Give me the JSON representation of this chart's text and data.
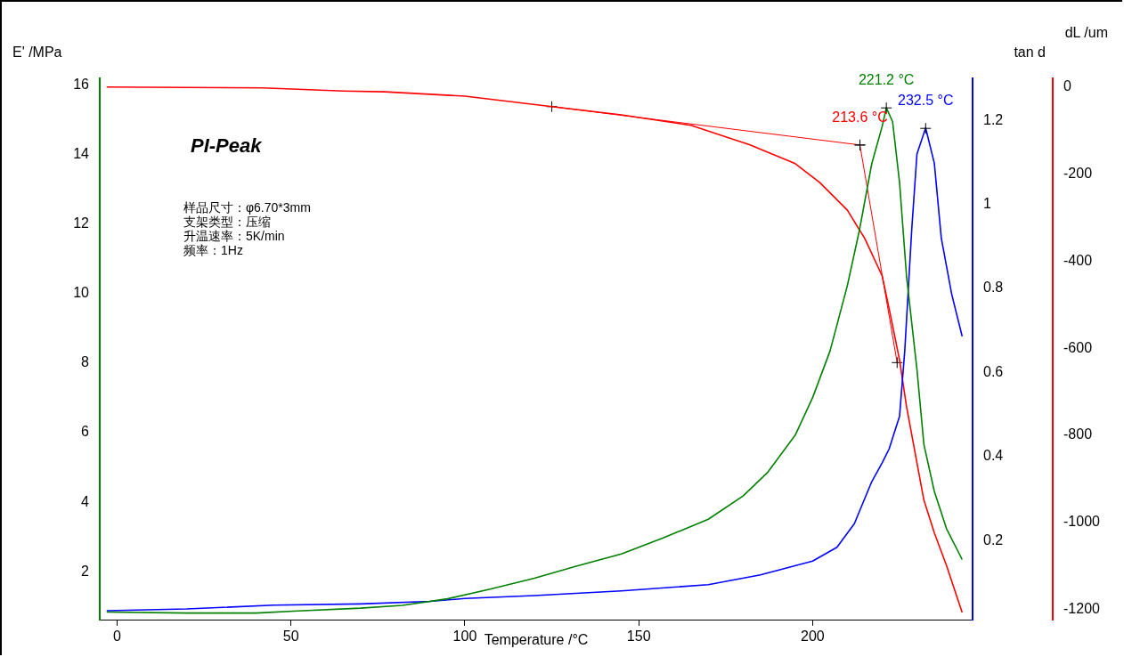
{
  "chart_data": {
    "type": "line",
    "title": "PI-Peak",
    "xlabel": "Temperature /°C",
    "ylabel": "E' /MPa",
    "y2label": "tan d",
    "y3label": "dL /um",
    "xlim": [
      -5,
      246
    ],
    "xticks": [
      0,
      50,
      100,
      150,
      200
    ],
    "ylim": [
      0.6,
      16.2
    ],
    "yticks": [
      2,
      4,
      6,
      8,
      10,
      12,
      14,
      16
    ],
    "y2lim": [
      0.01,
      1.3
    ],
    "y2ticks": [
      0.2,
      0.4,
      0.6,
      0.8,
      1.0,
      1.2
    ],
    "y3lim": [
      -1225,
      20
    ],
    "y3ticks": [
      0,
      -200,
      -400,
      -600,
      -800,
      -1000,
      -1200
    ],
    "grid": false,
    "legend": false,
    "marker": "none",
    "line_style": "solid",
    "series": [
      {
        "color": "#008000",
        "x": [
          -3,
          20,
          40,
          52,
          70,
          82,
          95,
          107,
          120,
          132,
          145,
          157,
          170,
          180,
          187,
          195,
          200,
          205,
          210,
          213.5,
          217,
          220,
          221.2,
          223,
          225,
          227,
          230,
          232,
          235,
          238.5,
          243
        ],
        "values": [
          0.84,
          0.81,
          0.81,
          0.87,
          0.95,
          1.03,
          1.22,
          1.49,
          1.81,
          2.16,
          2.51,
          2.97,
          3.51,
          4.18,
          4.85,
          5.93,
          7.01,
          8.35,
          10.24,
          11.85,
          13.74,
          14.82,
          15.35,
          14.95,
          13.2,
          10.51,
          7.82,
          5.66,
          4.31,
          3.24,
          2.35
        ]
      },
      {
        "color": "#0000ff",
        "axis": "y2",
        "x": [
          -3,
          20,
          45,
          70,
          90,
          100,
          120,
          145,
          170,
          185,
          200,
          207,
          212,
          217,
          220,
          222,
          225,
          226.5,
          228.5,
          230,
          232.5,
          235,
          237,
          240,
          243
        ],
        "values": [
          0.033,
          0.037,
          0.046,
          0.049,
          0.055,
          0.062,
          0.069,
          0.08,
          0.095,
          0.118,
          0.151,
          0.184,
          0.24,
          0.34,
          0.385,
          0.418,
          0.496,
          0.652,
          0.94,
          1.12,
          1.182,
          1.098,
          0.92,
          0.786,
          0.686
        ]
      },
      {
        "color": "#ff0000",
        "axis": "y3",
        "x": [
          -3,
          42,
          65,
          77,
          100,
          125,
          145,
          165,
          182,
          195,
          202,
          210,
          215,
          220,
          222,
          225,
          227,
          230,
          232,
          235,
          238.5,
          243
        ],
        "values": [
          0,
          -2,
          -9,
          -11,
          -21,
          -45,
          -64,
          -88,
          -133,
          -176,
          -219,
          -283,
          -348,
          -434,
          -509,
          -627,
          -734,
          -863,
          -949,
          -1024,
          -1099,
          -1207
        ]
      },
      {
        "color": "#ff0000",
        "axis": "y3",
        "marker": "cross",
        "x": [
          125,
          213.6,
          224.3
        ],
        "values": [
          -45,
          -133,
          -633
        ]
      }
    ],
    "annotations": [
      {
        "text": "221.2 °C",
        "x": 221.2,
        "y": 15.35
      },
      {
        "text": "232.5 °C",
        "x": 232.5,
        "y": 14.76
      },
      {
        "text": "213.6 °C",
        "x": 213.6,
        "y": 14.28
      },
      "样品尺寸：φ6.70*3mm",
      "支架类型：压缩",
      "升温速率：5K/min",
      "频率：1Hz"
    ]
  }
}
